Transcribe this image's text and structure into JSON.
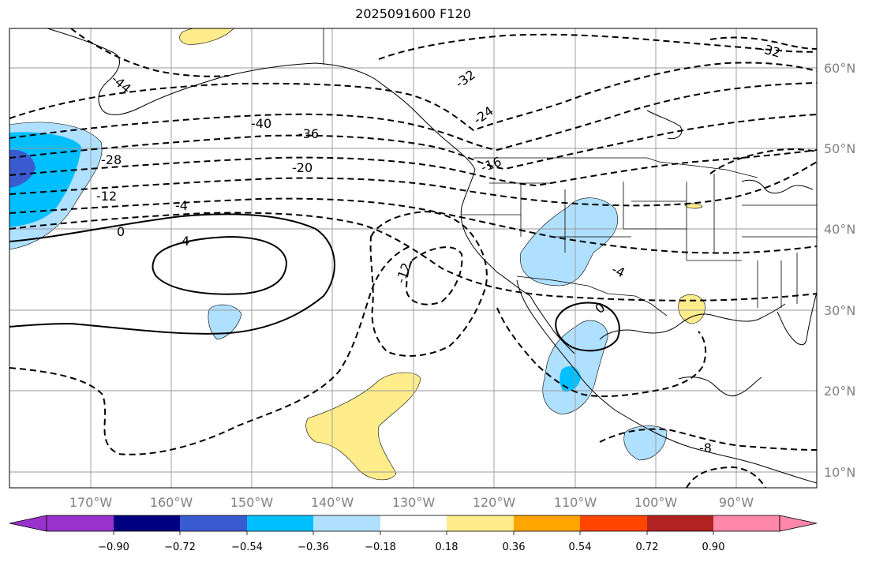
{
  "title": "2025091600 F120",
  "map": {
    "lat_labels": [
      "60°N",
      "50°N",
      "40°N",
      "30°N",
      "20°N",
      "10°N"
    ],
    "lon_labels": [
      "170°W",
      "160°W",
      "150°W",
      "140°W",
      "130°W",
      "120°W",
      "110°W",
      "100°W",
      "90°W"
    ],
    "contour_labels": [
      "-44",
      "-40",
      "-36",
      "-32",
      "-28",
      "-24",
      "-20",
      "-16",
      "-12",
      "-12",
      "-4",
      "0",
      "4",
      "-4",
      "0",
      "-8",
      "-32"
    ],
    "colors": {
      "land_outline": "#000000",
      "grid": "#999999",
      "light_blue": "#b0e0ff",
      "blue": "#00bfff",
      "dark_blue": "#3a5bd0",
      "yellow": "#ffec8b"
    }
  },
  "colorbar": {
    "ticks": [
      "−0.90",
      "−0.72",
      "−0.54",
      "−0.36",
      "−0.18",
      "0.18",
      "0.36",
      "0.54",
      "0.72",
      "0.90"
    ],
    "colors": [
      "#9932cc",
      "#000080",
      "#3a5bd0",
      "#00bfff",
      "#b0e0ff",
      "#ffffff",
      "#ffec8b",
      "#ffa500",
      "#ff4500",
      "#b22222",
      "#ff88aa"
    ]
  }
}
